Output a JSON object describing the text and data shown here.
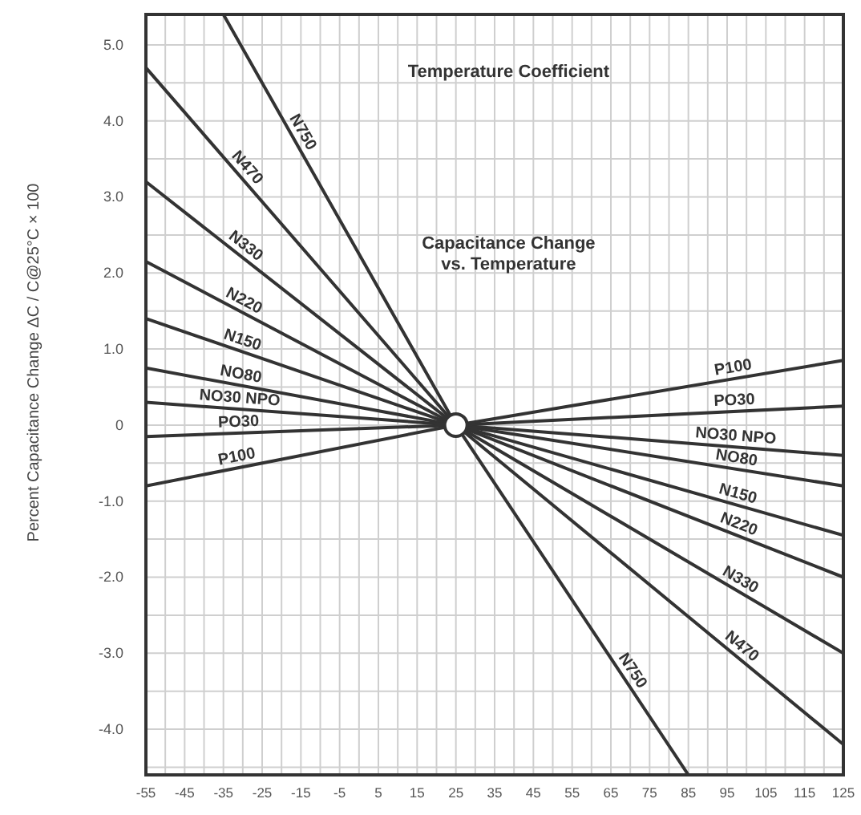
{
  "chart_data": {
    "type": "line",
    "title": "Temperature Coefficient",
    "subtitle": "Capacitance Change\nvs. Temperature",
    "ylabel": "Percent Capacitance Change   ΔC / C@25°C  × 100",
    "xlim": [
      -55,
      125
    ],
    "xticks": [
      -55,
      -45,
      -35,
      -25,
      -15,
      -5,
      5,
      15,
      25,
      35,
      45,
      55,
      65,
      75,
      85,
      95,
      105,
      115,
      125
    ],
    "ylim": [
      -4.6,
      5.4
    ],
    "yticks": [
      {
        "value": -4,
        "label": "-4.0"
      },
      {
        "value": -3,
        "label": "-3.0"
      },
      {
        "value": -2,
        "label": "-2.0"
      },
      {
        "value": -1,
        "label": "-1.0"
      },
      0,
      {
        "value": 1,
        "label": "1.0"
      },
      {
        "value": 2,
        "label": "2.0"
      },
      {
        "value": 3,
        "label": "3.0"
      },
      {
        "value": 4,
        "label": "4.0"
      },
      {
        "value": 5,
        "label": "5.0"
      }
    ],
    "grid": true,
    "line_style": "solid",
    "series": [
      {
        "name": "N750",
        "color": "#333333",
        "x": [
          -35,
          25,
          85
        ],
        "values": [
          5.4,
          0,
          -4.6
        ]
      },
      {
        "name": "N470",
        "color": "#333333",
        "x": [
          -55,
          25,
          125
        ],
        "values": [
          4.7,
          0,
          -4.2
        ]
      },
      {
        "name": "N330",
        "color": "#333333",
        "x": [
          -55,
          25,
          125
        ],
        "values": [
          3.2,
          0,
          -3.0
        ]
      },
      {
        "name": "N220",
        "color": "#333333",
        "x": [
          -55,
          25,
          125
        ],
        "values": [
          2.15,
          0,
          -2.0
        ]
      },
      {
        "name": "N150",
        "color": "#333333",
        "x": [
          -55,
          25,
          125
        ],
        "values": [
          1.4,
          0,
          -1.45
        ]
      },
      {
        "name": "NO80",
        "color": "#333333",
        "x": [
          -55,
          25,
          125
        ],
        "values": [
          0.75,
          0,
          -0.8
        ]
      },
      {
        "name": "NO30 NPO",
        "color": "#333333",
        "x": [
          -55,
          25,
          125
        ],
        "values": [
          0.3,
          0,
          -0.4
        ]
      },
      {
        "name": "PO30",
        "color": "#333333",
        "x": [
          -55,
          25,
          125
        ],
        "values": [
          -0.15,
          0,
          0.25
        ]
      },
      {
        "name": "P100",
        "color": "#333333",
        "x": [
          -55,
          25,
          125
        ],
        "values": [
          -0.8,
          0,
          0.85
        ]
      }
    ]
  }
}
